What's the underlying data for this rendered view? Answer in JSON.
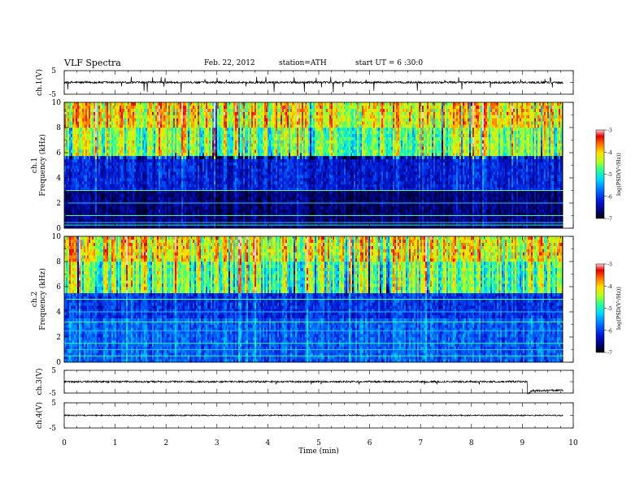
{
  "header": {
    "title": "VLF  Spectra",
    "date": "Feb. 22, 2012",
    "station": "station=ATH",
    "start": "start  UT  =   6  :30:0"
  },
  "colors": {
    "background": "#000000",
    "colormap": [
      "#000000",
      "#000070",
      "#0018d8",
      "#0070ff",
      "#00d8ff",
      "#30ff90",
      "#b0ff20",
      "#ffe000",
      "#ff7000",
      "#e00000",
      "#ffd0d0"
    ]
  },
  "chart_data": [
    {
      "type": "line",
      "panel": "ch1-waveform",
      "ylabel": "ch.1(V)",
      "ylim": [
        -5,
        5
      ],
      "yticks": [
        "5",
        "-5"
      ],
      "xlim": [
        0,
        10
      ],
      "series": [
        {
          "baseline": 0,
          "noise_amplitude": 1.3,
          "spikes_to": -5,
          "x_end": 9.8
        }
      ]
    },
    {
      "type": "heatmap",
      "panel": "ch1-spectrogram",
      "ylabel": "ch.1\nFrequency (kHz)",
      "ylim": [
        0,
        10
      ],
      "yticks": [
        "0",
        "2",
        "4",
        "6",
        "8",
        "10"
      ],
      "xlim": [
        0,
        9.8
      ],
      "colorbar": {
        "label": "log(PSD(V²/Hz))",
        "range": [
          -7,
          -3
        ],
        "ticks": [
          "-3",
          "-4",
          "-5",
          "-6",
          "-7"
        ]
      },
      "bands": [
        {
          "f": [
            0,
            3
          ],
          "log_psd": -6.6
        },
        {
          "f": [
            3,
            5.8
          ],
          "log_psd": -6.2
        },
        {
          "f": [
            5.8,
            8
          ],
          "log_psd": -4.8
        },
        {
          "f": [
            8,
            10
          ],
          "log_psd": -4.3
        }
      ],
      "lines_khz": [
        0.25,
        0.45,
        1.0,
        2.0,
        3.0
      ]
    },
    {
      "type": "heatmap",
      "panel": "ch2-spectrogram",
      "ylabel": "ch.2\nFrequency (kHz)",
      "ylim": [
        0,
        10
      ],
      "yticks": [
        "0",
        "2",
        "4",
        "6",
        "8",
        "10"
      ],
      "xlim": [
        0,
        9.8
      ],
      "colorbar": {
        "label": "log(PSD(V²/Hz))",
        "range": [
          -7,
          -3
        ],
        "ticks": [
          "-3",
          "-4",
          "-5",
          "-6",
          "-7"
        ]
      },
      "bands": [
        {
          "f": [
            0,
            3.5
          ],
          "log_psd": -5.9
        },
        {
          "f": [
            3.5,
            5.5
          ],
          "log_psd": -6.1
        },
        {
          "f": [
            5.5,
            8
          ],
          "log_psd": -4.9
        },
        {
          "f": [
            8,
            10
          ],
          "log_psd": -4.4
        }
      ],
      "lines_khz": [
        0.5,
        1.0,
        1.5,
        2.5,
        3.2,
        4.0,
        5.0
      ]
    },
    {
      "type": "line",
      "panel": "ch3-waveform",
      "ylabel": "ch.3(V)",
      "ylim": [
        -5,
        5
      ],
      "yticks": [
        "5",
        "-5"
      ],
      "xlim": [
        0,
        10
      ],
      "series": [
        {
          "segments": [
            {
              "x": [
                0,
                9.1
              ],
              "level": 0
            },
            {
              "x": [
                9.1,
                9.8
              ],
              "level": -5
            }
          ],
          "noise_amplitude": 0.6
        }
      ]
    },
    {
      "type": "line",
      "panel": "ch4-waveform",
      "ylabel": "ch.4(V)",
      "ylim": [
        -5,
        5
      ],
      "yticks": [
        "5",
        "-5"
      ],
      "xlim": [
        0,
        10
      ],
      "xlabel": "Time  (min)",
      "xticks": [
        "0",
        "1",
        "2",
        "3",
        "4",
        "5",
        "6",
        "7",
        "8",
        "9",
        "10"
      ],
      "series": [
        {
          "baseline": 0,
          "noise_amplitude": 0.15,
          "x_end": 9.8
        }
      ]
    }
  ]
}
